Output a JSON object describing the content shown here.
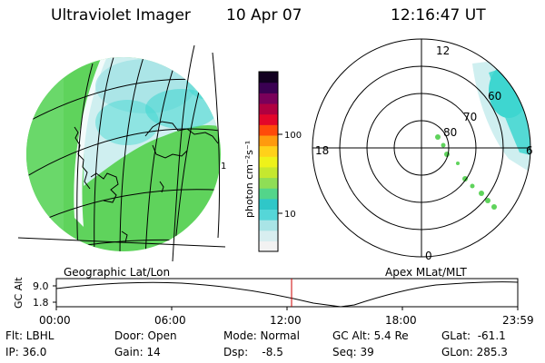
{
  "header": {
    "title": "Ultraviolet Imager",
    "date": "10 Apr 07",
    "time": "12:16:47 UT"
  },
  "colors": {
    "image_green": "#5fd35c",
    "image_cyan": "#3ed6d0",
    "image_pale": "#cfeff0",
    "cursor_red": "#cc0000"
  },
  "colorbar": {
    "unit_label": "photon cm⁻²s⁻¹",
    "tick_labels": [
      "100",
      "10"
    ],
    "colors": [
      "#f2f2f2",
      "#d8eef0",
      "#a9e4e6",
      "#55d6d8",
      "#2fc7c8",
      "#53d58a",
      "#8fde56",
      "#c5e82f",
      "#eef21a",
      "#ffd11a",
      "#ff9a0e",
      "#ff4a0a",
      "#e3062a",
      "#b00040",
      "#7a005a",
      "#3a0052",
      "#120020"
    ]
  },
  "geo_panel": {
    "caption": "Geographic Lat/Lon",
    "marker": "1"
  },
  "polar_panel": {
    "caption": "Apex MLat/MLT",
    "mlt_labels": [
      "12",
      "18",
      "6",
      "0"
    ],
    "mlat_labels": [
      "60",
      "70",
      "80"
    ]
  },
  "altitude_plot": {
    "ylabel": "GC Alt",
    "yticks": [
      "9.0",
      "1.8"
    ],
    "xticks": [
      "00:00",
      "06:00",
      "12:00",
      "18:00",
      "23:59"
    ],
    "cursor_time": "12:16:47"
  },
  "info": {
    "flt": "Flt: LBHL",
    "ip": "IP: 36.0",
    "door": "Door: Open",
    "gain": "Gain: 14",
    "mode": "Mode: Normal",
    "dsp": "Dsp:    -8.5",
    "gc_alt": "GC Alt: 5.4 Re",
    "seq": "Seq: 39",
    "glat": "GLat:  -61.1",
    "glon": "GLon: 285.3"
  }
}
